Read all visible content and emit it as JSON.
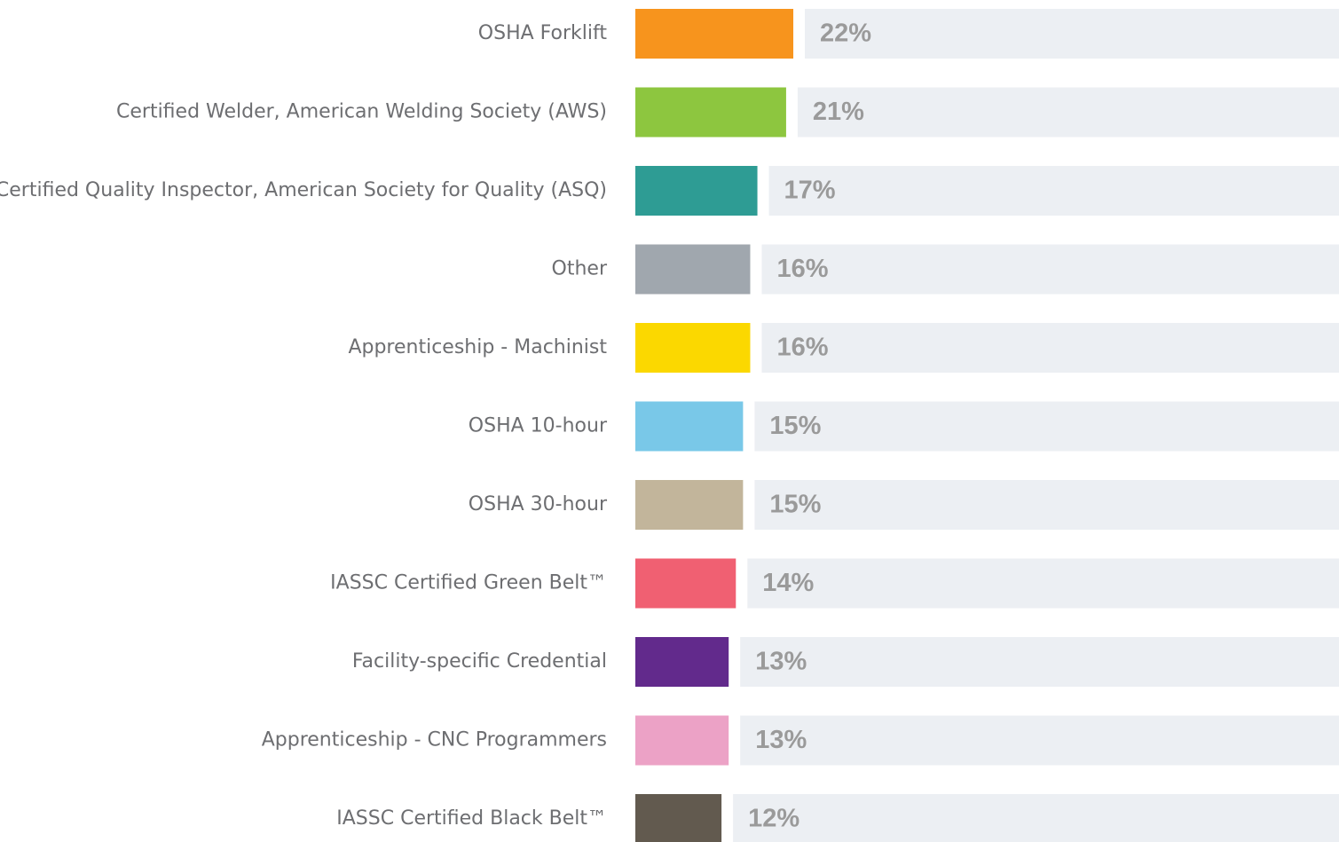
{
  "chart_data": {
    "type": "bar",
    "orientation": "horizontal",
    "categories": [
      "OSHA Forklift",
      "Certified Welder, American Welding Society (AWS)",
      "Certified Quality Inspector, American Society for Quality (ASQ)",
      "Other",
      "Apprenticeship - Machinist",
      "OSHA 10-hour",
      "OSHA 30-hour",
      "IASSC Certified Green Belt™",
      "Facility-specific Credential",
      "Apprenticeship - CNC Programmers",
      "IASSC Certified Black Belt™"
    ],
    "values": [
      22,
      21,
      17,
      16,
      16,
      15,
      15,
      14,
      13,
      13,
      12
    ],
    "value_labels": [
      "22%",
      "21%",
      "17%",
      "16%",
      "16%",
      "15%",
      "15%",
      "14%",
      "13%",
      "13%",
      "12%"
    ],
    "colors": [
      "#f7941d",
      "#8dc63f",
      "#2e9c94",
      "#a0a7ae",
      "#fbd800",
      "#79c8e8",
      "#c2b59b",
      "#f06072",
      "#622a8c",
      "#eca2c6",
      "#625a4f"
    ],
    "xlim": [
      0,
      98
    ]
  }
}
